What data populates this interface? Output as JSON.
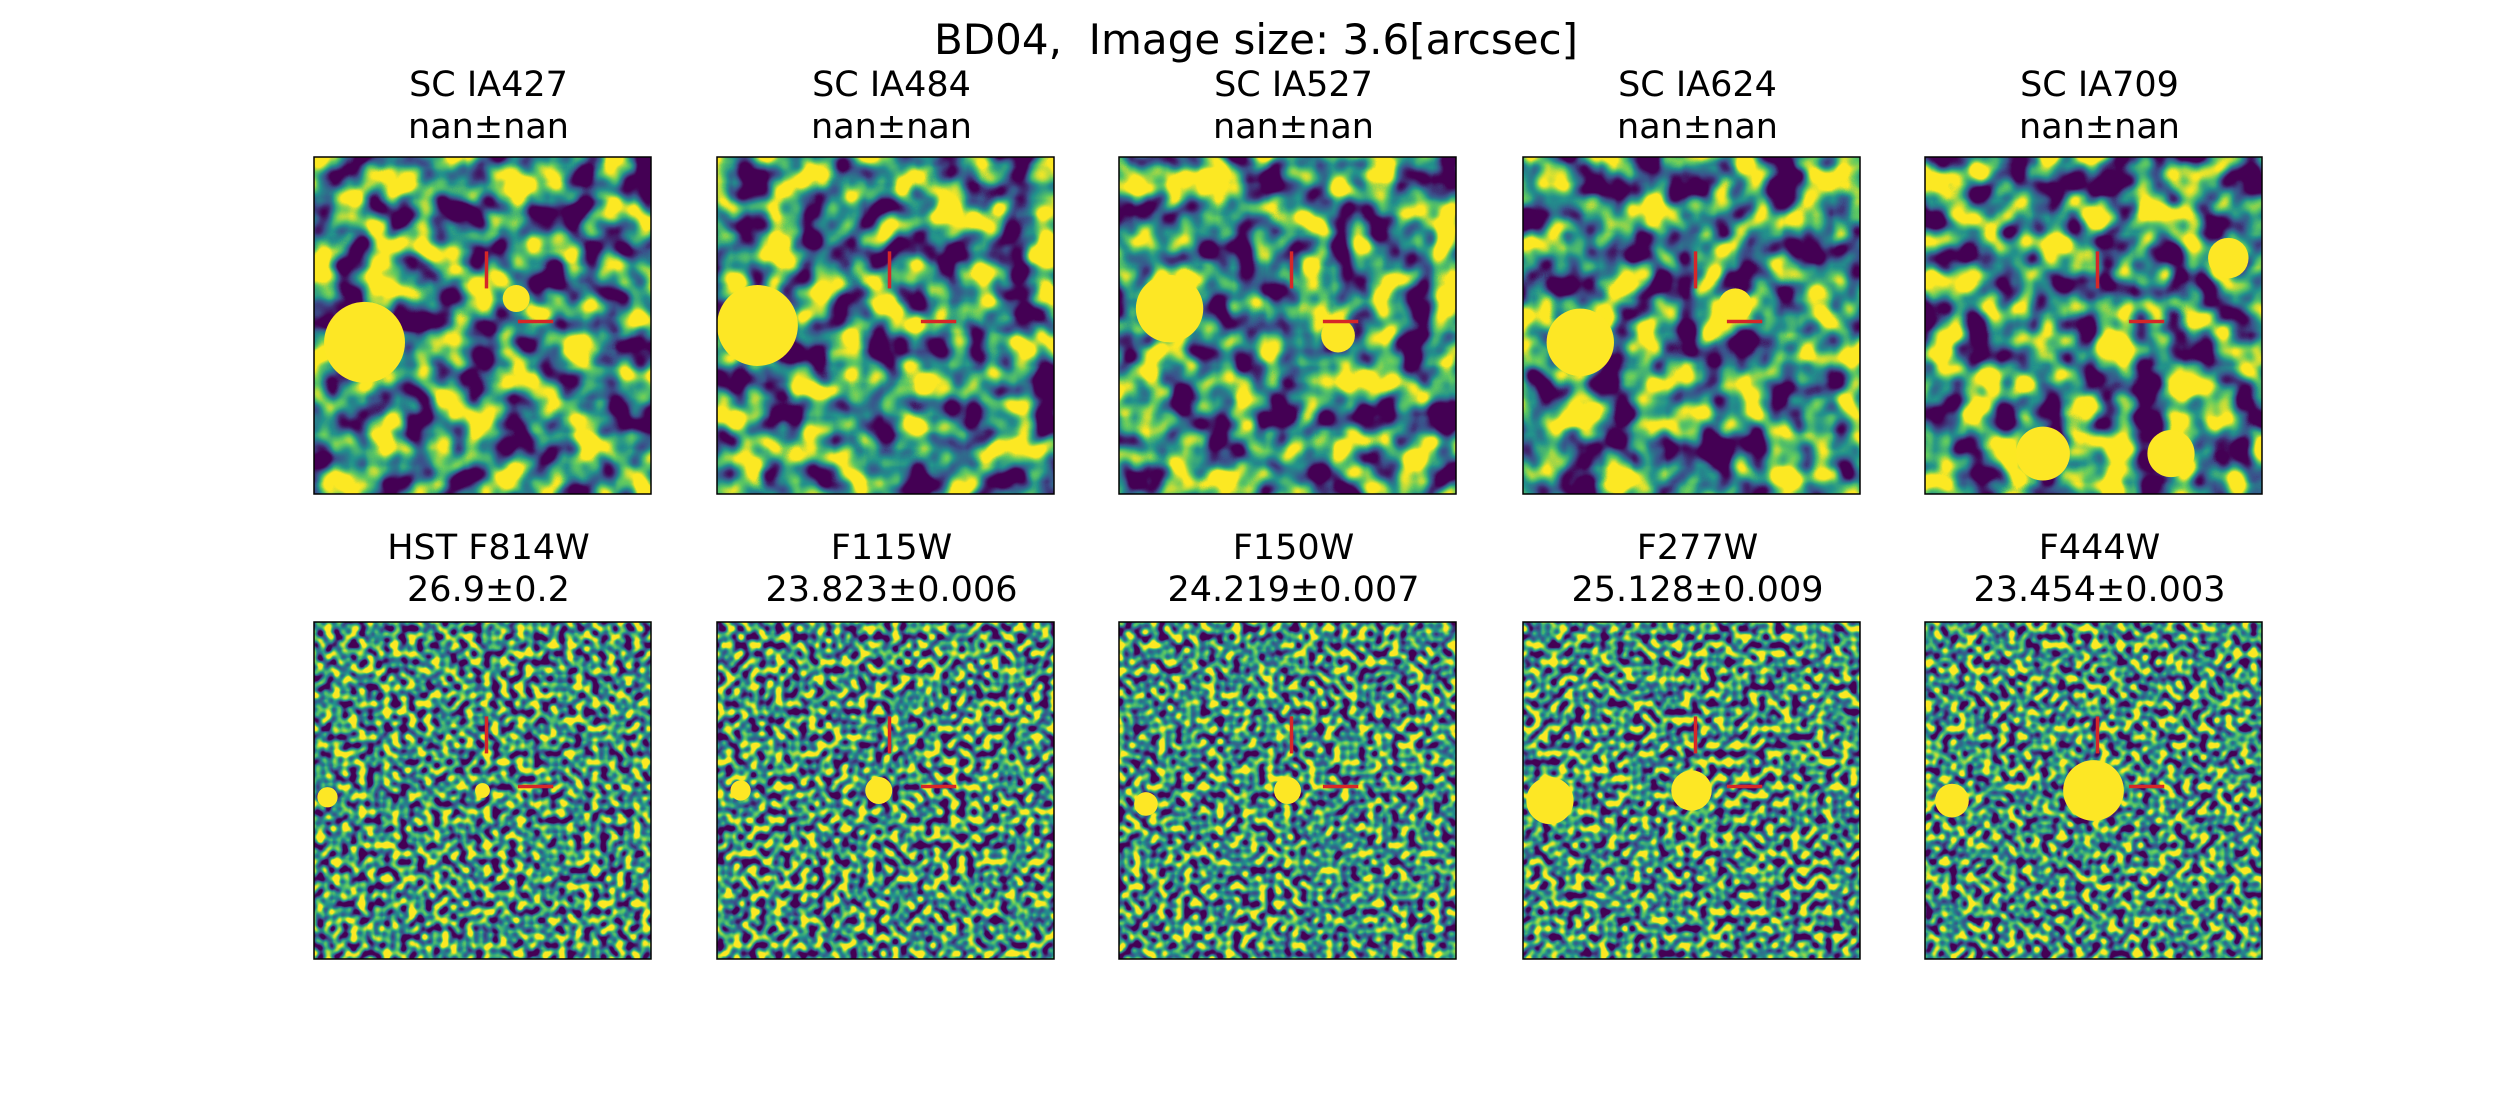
{
  "title": "BD04,  Image size: 3.6[arcsec]",
  "rows": [
    [
      {
        "band": "SC IA427",
        "mag": "nan±nan"
      },
      {
        "band": "SC IA484",
        "mag": "nan±nan"
      },
      {
        "band": "SC IA527",
        "mag": "nan±nan"
      },
      {
        "band": "SC IA624",
        "mag": "nan±nan"
      },
      {
        "band": "SC IA709",
        "mag": "nan±nan"
      }
    ],
    [
      {
        "band": "HST F814W",
        "mag": "26.9±0.2"
      },
      {
        "band": "F115W",
        "mag": "23.823±0.006"
      },
      {
        "band": "F150W",
        "mag": "24.219±0.007"
      },
      {
        "band": "F277W",
        "mag": "25.128±0.009"
      },
      {
        "band": "F444W",
        "mag": "23.454±0.003"
      }
    ]
  ]
}
